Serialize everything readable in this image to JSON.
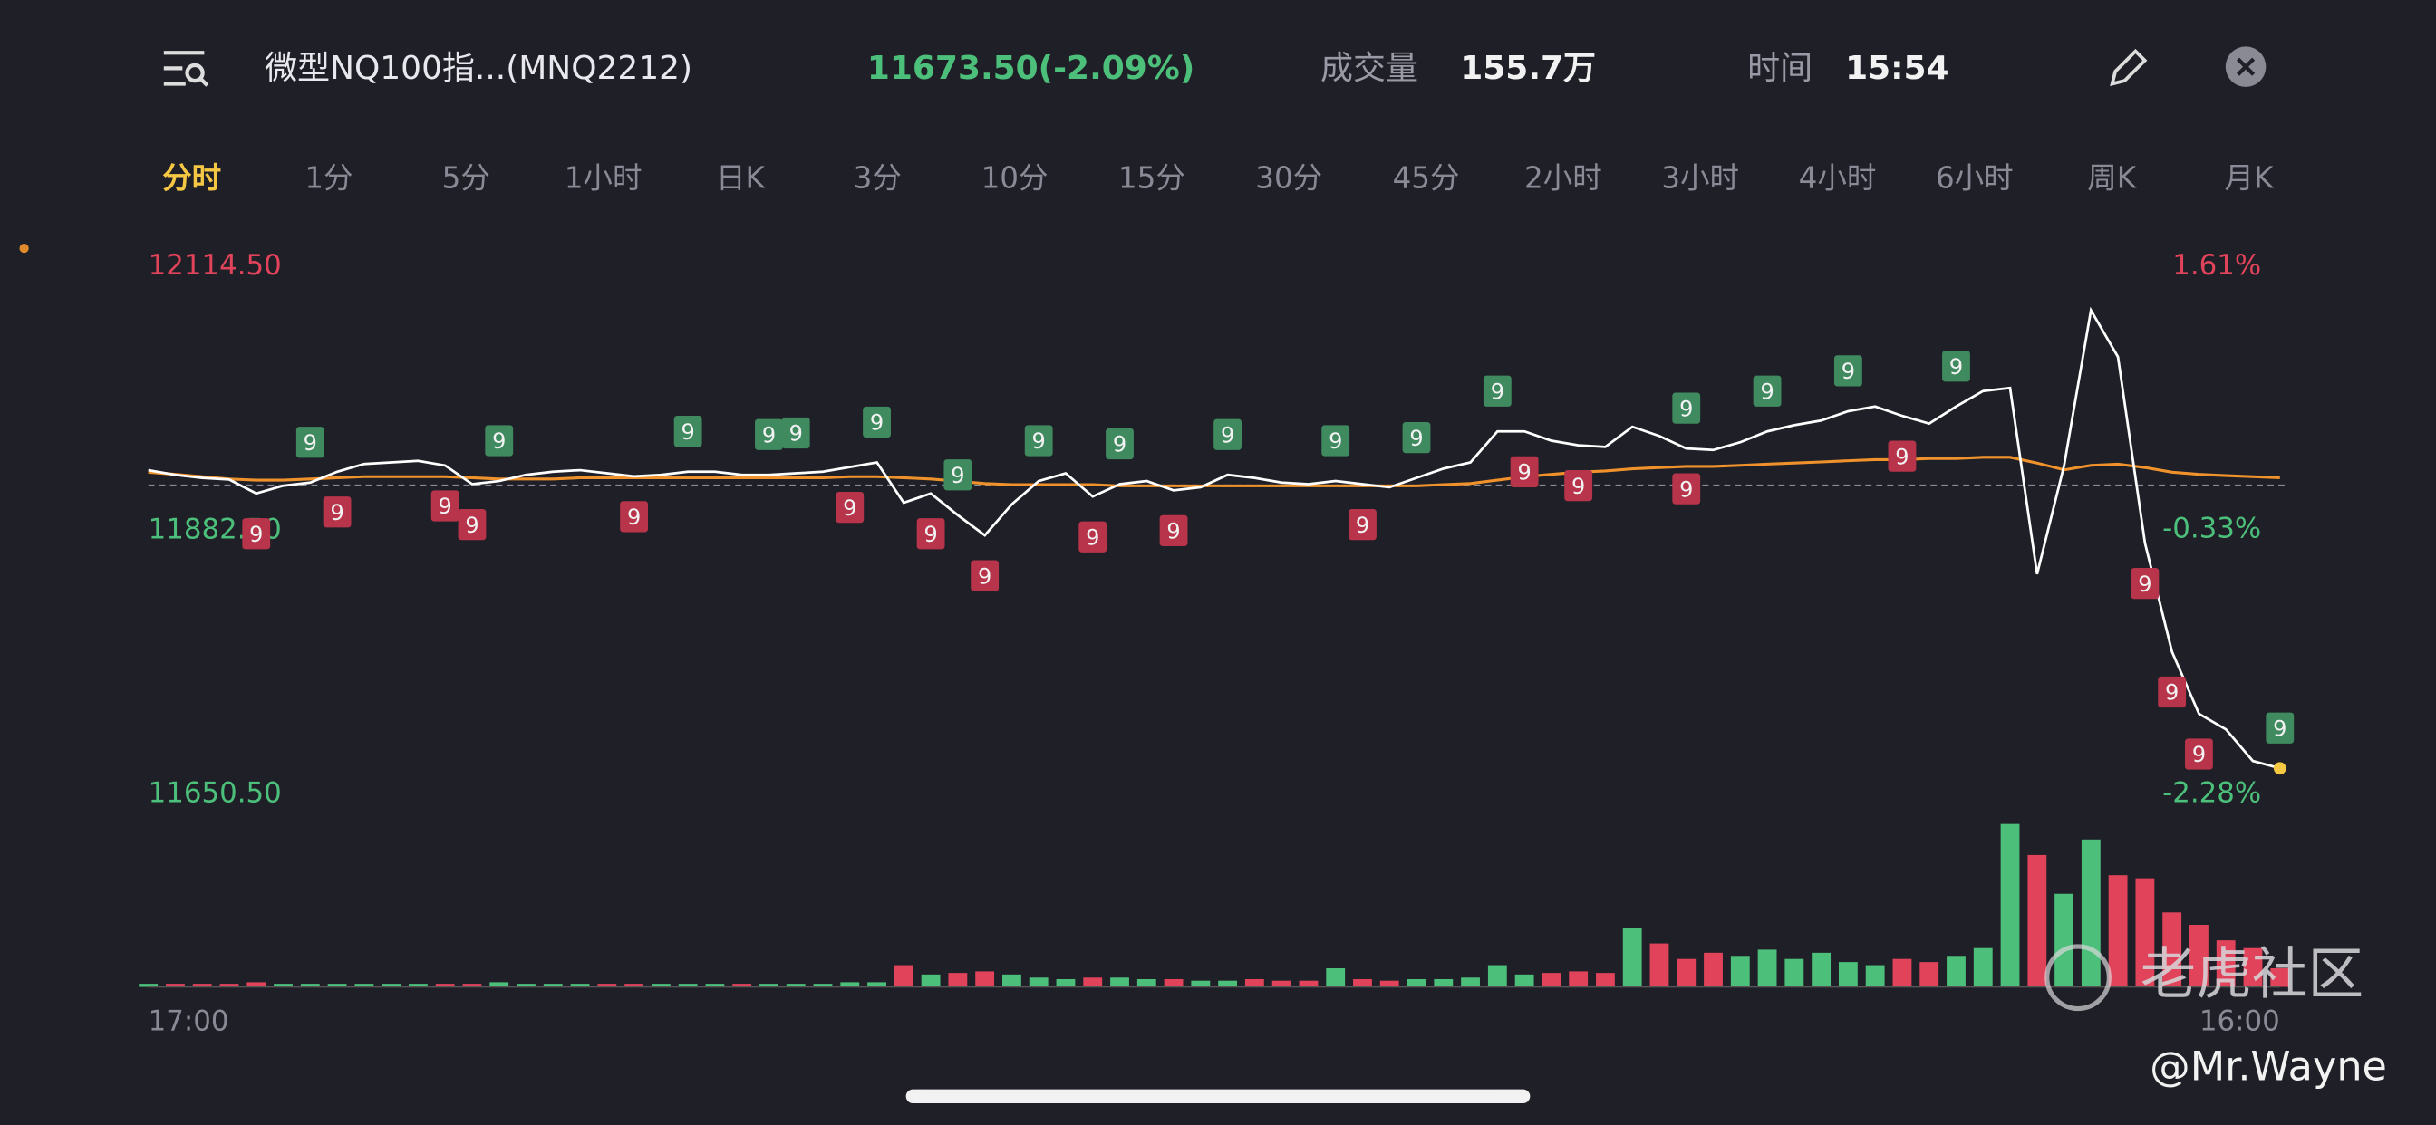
{
  "header": {
    "title": "微型NQ100指...(MNQ2212)",
    "price": "11673.50(-2.09%)",
    "volume_label": "成交量",
    "volume": "155.7万",
    "time_label": "时间",
    "time": "15:54"
  },
  "tabs": {
    "items": [
      "分时",
      "1分",
      "5分",
      "1小时",
      "日K",
      "3分",
      "10分",
      "15分",
      "30分",
      "45分",
      "2小时",
      "3小时",
      "4小时",
      "6小时",
      "周K",
      "月K"
    ],
    "active": 0
  },
  "watermark": {
    "brand": "老虎社区",
    "author": "@Mr.Wayne"
  },
  "chart_data": {
    "type": "line",
    "categories": [
      "17:00",
      null,
      null,
      null,
      null,
      null,
      null,
      null,
      null,
      null,
      null,
      null,
      null,
      null,
      null,
      null,
      null,
      null,
      null,
      null,
      null,
      null,
      null,
      null,
      null,
      null,
      null,
      null,
      null,
      null,
      null,
      null,
      null,
      null,
      null,
      null,
      null,
      null,
      null,
      null,
      null,
      null,
      null,
      null,
      null,
      null,
      null,
      null,
      null,
      null,
      null,
      null,
      null,
      null,
      null,
      null,
      null,
      null,
      null,
      null,
      null,
      null,
      null,
      null,
      null,
      null,
      null,
      null,
      null,
      null,
      null,
      null,
      null,
      null,
      null,
      null,
      null,
      null,
      null,
      "16:00"
    ],
    "series": [
      {
        "color": "#ffffff",
        "values": [
          11935.7,
          11931.6,
          11928.9,
          11927.5,
          11915.3,
          11922.1,
          11924.8,
          11934.4,
          11941.2,
          11942.5,
          11943.9,
          11939.8,
          11923.4,
          11926.2,
          11931.6,
          11934.4,
          11935.7,
          11933.0,
          11930.3,
          11931.6,
          11934.4,
          11934.4,
          11931.6,
          11931.6,
          11933.0,
          11934.4,
          11938.5,
          11942.5,
          11907.1,
          11915.3,
          11896.1,
          11878.4,
          11905.7,
          11926.2,
          11933.0,
          11912.5,
          11923.4,
          11926.2,
          11918.0,
          11920.7,
          11931.6,
          11928.9,
          11924.8,
          11923.4,
          11926.2,
          11923.4,
          11920.7,
          11928.9,
          11937.1,
          11942.5,
          11969.8,
          11969.8,
          11961.7,
          11957.6,
          11956.2,
          11973.9,
          11965.7,
          11954.8,
          11953.5,
          11960.3,
          11969.8,
          11975.3,
          11979.4,
          11987.6,
          11991.7,
          11983.5,
          11976.7,
          11991.7,
          12005.3,
          12008.1,
          11844.3,
          11939.8,
          12076.3,
          12035.3,
          11871.6,
          11776.1,
          11721.5,
          11707.8,
          11680.0,
          11673.5
        ]
      },
      {
        "color": "#f0922b",
        "values": [
          11934,
          11932,
          11930,
          11928,
          11927,
          11927,
          11928,
          11929,
          11930,
          11930,
          11930,
          11930,
          11929,
          11928,
          11928,
          11928,
          11929,
          11929,
          11929,
          11929,
          11929,
          11929,
          11929,
          11929,
          11929,
          11929,
          11930,
          11930,
          11929,
          11928,
          11926,
          11924,
          11923,
          11923,
          11923,
          11923,
          11922,
          11922,
          11922,
          11922,
          11922,
          11922,
          11922,
          11922,
          11922,
          11922,
          11922,
          11922,
          11923,
          11924,
          11927,
          11930,
          11932,
          11934,
          11935,
          11937,
          11938,
          11939,
          11939,
          11940,
          11941,
          11942,
          11943,
          11944,
          11945,
          11945,
          11946,
          11946,
          11947,
          11947,
          11942,
          11936,
          11940,
          11941,
          11938,
          11934,
          11932,
          11931,
          11930,
          11929
        ]
      }
    ],
    "volume": {
      "color_up": "#4cbf7a",
      "color_down": "#e0435a",
      "ylim": [
        0,
        110
      ],
      "values": [
        2,
        2,
        2,
        2,
        3,
        2,
        2,
        2,
        2,
        2,
        2,
        2,
        2,
        3,
        2,
        2,
        2,
        2,
        2,
        2,
        2,
        2,
        2,
        2,
        2,
        2,
        3,
        3,
        14,
        8,
        9,
        10,
        8,
        6,
        5,
        6,
        6,
        5,
        5,
        4,
        4,
        5,
        4,
        4,
        12,
        5,
        4,
        5,
        5,
        6,
        14,
        8,
        9,
        10,
        9,
        38,
        28,
        18,
        22,
        20,
        24,
        18,
        22,
        16,
        14,
        18,
        16,
        20,
        25,
        105,
        85,
        60,
        95,
        72,
        70,
        48,
        40,
        30,
        25,
        12
      ]
    },
    "signals": [
      {
        "index": 6,
        "label": "9",
        "color": "#3f8a5f"
      },
      {
        "index": 13,
        "label": "9",
        "color": "#3f8a5f"
      },
      {
        "index": 20,
        "label": "9",
        "color": "#3f8a5f"
      },
      {
        "index": 23,
        "label": "9",
        "color": "#3f8a5f"
      },
      {
        "index": 24,
        "label": "9",
        "color": "#3f8a5f"
      },
      {
        "index": 27,
        "label": "9",
        "color": "#3f8a5f"
      },
      {
        "index": 30,
        "label": "9",
        "color": "#3f8a5f"
      },
      {
        "index": 33,
        "label": "9",
        "color": "#3f8a5f"
      },
      {
        "index": 36,
        "label": "9",
        "color": "#3f8a5f"
      },
      {
        "index": 40,
        "label": "9",
        "color": "#3f8a5f"
      },
      {
        "index": 44,
        "label": "9",
        "color": "#3f8a5f"
      },
      {
        "index": 47,
        "label": "9",
        "color": "#3f8a5f"
      },
      {
        "index": 50,
        "label": "9",
        "color": "#3f8a5f"
      },
      {
        "index": 57,
        "label": "9",
        "color": "#3f8a5f"
      },
      {
        "index": 60,
        "label": "9",
        "color": "#3f8a5f"
      },
      {
        "index": 63,
        "label": "9",
        "color": "#3f8a5f"
      },
      {
        "index": 67,
        "label": "9",
        "color": "#3f8a5f"
      },
      {
        "index": 79,
        "label": "9",
        "color": "#3f8a5f"
      },
      {
        "index": 4,
        "label": "9",
        "color": "#b8344a"
      },
      {
        "index": 7,
        "label": "9",
        "color": "#b8344a"
      },
      {
        "index": 11,
        "label": "9",
        "color": "#b8344a"
      },
      {
        "index": 12,
        "label": "9",
        "color": "#b8344a"
      },
      {
        "index": 18,
        "label": "9",
        "color": "#b8344a"
      },
      {
        "index": 26,
        "label": "9",
        "color": "#b8344a"
      },
      {
        "index": 29,
        "label": "9",
        "color": "#b8344a"
      },
      {
        "index": 31,
        "label": "9",
        "color": "#b8344a"
      },
      {
        "index": 35,
        "label": "9",
        "color": "#b8344a"
      },
      {
        "index": 38,
        "label": "9",
        "color": "#b8344a"
      },
      {
        "index": 45,
        "label": "9",
        "color": "#b8344a"
      },
      {
        "index": 51,
        "label": "9",
        "color": "#b8344a"
      },
      {
        "index": 53,
        "label": "9",
        "color": "#b8344a"
      },
      {
        "index": 57,
        "label": "9",
        "color": "#b8344a"
      },
      {
        "index": 65,
        "label": "9",
        "color": "#b8344a"
      },
      {
        "index": 74,
        "label": "9",
        "color": "#b8344a"
      },
      {
        "index": 75,
        "label": "9",
        "color": "#b8344a"
      },
      {
        "index": 76,
        "label": "9",
        "color": "#b8344a"
      }
    ],
    "ylim": [
      11650.5,
      12114.5
    ],
    "yticks": [
      {
        "value": 11650.5,
        "label": "11650.50"
      },
      {
        "value": 11882.5,
        "label": "11882.50"
      },
      {
        "value": 12114.5,
        "label": "12114.50"
      }
    ],
    "y2lim": [
      -2.28,
      1.61
    ],
    "y2ticks": [
      {
        "value": -2.28,
        "label": "-2.28%"
      },
      {
        "value": -0.33,
        "label": "-0.33%"
      },
      {
        "value": 1.61,
        "label": "1.61%"
      }
    ]
  }
}
